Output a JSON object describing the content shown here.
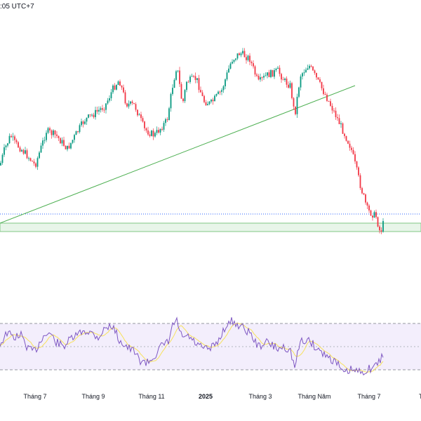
{
  "header": {
    "timestamp_label": ":05 UTC+7"
  },
  "x_axis": {
    "labels": [
      {
        "text": "Tháng 7",
        "bold": false
      },
      {
        "text": "Tháng 9",
        "bold": false
      },
      {
        "text": "Tháng 11",
        "bold": false
      },
      {
        "text": "2025",
        "bold": true
      },
      {
        "text": "Tháng 3",
        "bold": false
      },
      {
        "text": "Tháng Năm",
        "bold": false
      },
      {
        "text": "Tháng 7",
        "bold": false
      },
      {
        "text": "T",
        "bold": false
      }
    ]
  },
  "colors": {
    "up": "#089981",
    "down": "#f23645",
    "trendline": "#4caf50",
    "support_zone_fill": "#e8f5e9",
    "support_zone_border": "#81c784",
    "price_line": "#2962ff",
    "rsi_line": "#7e57c2",
    "rsi_ma": "#f7e15c",
    "rsi_band_fill": "#f3eefc",
    "rsi_band_border": "#9598a1"
  },
  "chart_data": {
    "type": "candlestick",
    "price_path": [
      [
        0,
        0.7
      ],
      [
        6,
        0.6
      ],
      [
        15,
        0.5
      ],
      [
        21,
        0.55
      ],
      [
        28,
        0.58
      ],
      [
        40,
        0.64
      ],
      [
        50,
        0.7
      ],
      [
        60,
        0.56
      ],
      [
        66,
        0.47
      ],
      [
        80,
        0.5
      ],
      [
        96,
        0.59
      ],
      [
        106,
        0.51
      ],
      [
        120,
        0.4
      ],
      [
        136,
        0.35
      ],
      [
        150,
        0.3
      ],
      [
        162,
        0.18
      ],
      [
        170,
        0.13
      ],
      [
        180,
        0.29
      ],
      [
        192,
        0.3
      ],
      [
        206,
        0.46
      ],
      [
        220,
        0.5
      ],
      [
        238,
        0.4
      ],
      [
        246,
        0.17
      ],
      [
        252,
        0.03
      ],
      [
        260,
        0.3
      ],
      [
        266,
        0.14
      ],
      [
        280,
        0.12
      ],
      [
        290,
        0.27
      ],
      [
        300,
        0.29
      ],
      [
        316,
        0.2
      ],
      [
        330,
        0.0
      ],
      [
        342,
        -0.05
      ],
      [
        356,
        -0.01
      ],
      [
        368,
        0.15
      ],
      [
        380,
        0.1
      ],
      [
        396,
        0.07
      ],
      [
        406,
        0.14
      ],
      [
        414,
        0.17
      ],
      [
        420,
        0.37
      ],
      [
        428,
        0.1
      ],
      [
        440,
        0.03
      ],
      [
        452,
        0.13
      ],
      [
        466,
        0.25
      ],
      [
        480,
        0.38
      ],
      [
        500,
        0.58
      ],
      [
        514,
        0.84
      ],
      [
        524,
        1.0
      ],
      [
        536,
        1.04
      ],
      [
        542,
        1.15
      ],
      [
        546,
        1.09
      ]
    ],
    "rsi_path": [
      [
        0,
        0.45
      ],
      [
        10,
        0.2
      ],
      [
        20,
        0.3
      ],
      [
        30,
        0.25
      ],
      [
        40,
        0.55
      ],
      [
        50,
        0.6
      ],
      [
        60,
        0.3
      ],
      [
        70,
        0.2
      ],
      [
        80,
        0.4
      ],
      [
        90,
        0.5
      ],
      [
        100,
        0.35
      ],
      [
        110,
        0.25
      ],
      [
        120,
        0.15
      ],
      [
        130,
        0.2
      ],
      [
        140,
        0.3
      ],
      [
        150,
        0.1
      ],
      [
        160,
        0.05
      ],
      [
        170,
        0.35
      ],
      [
        180,
        0.5
      ],
      [
        190,
        0.6
      ],
      [
        200,
        0.8
      ],
      [
        210,
        0.85
      ],
      [
        220,
        0.7
      ],
      [
        230,
        0.5
      ],
      [
        240,
        0.4
      ],
      [
        246,
        0.05
      ],
      [
        252,
        -0.05
      ],
      [
        260,
        0.35
      ],
      [
        266,
        0.25
      ],
      [
        280,
        0.45
      ],
      [
        290,
        0.55
      ],
      [
        300,
        0.55
      ],
      [
        310,
        0.4
      ],
      [
        320,
        0.1
      ],
      [
        330,
        -0.05
      ],
      [
        342,
        0.05
      ],
      [
        356,
        0.2
      ],
      [
        368,
        0.5
      ],
      [
        380,
        0.4
      ],
      [
        396,
        0.55
      ],
      [
        406,
        0.5
      ],
      [
        414,
        0.6
      ],
      [
        420,
        0.95
      ],
      [
        428,
        0.4
      ],
      [
        440,
        0.35
      ],
      [
        452,
        0.55
      ],
      [
        466,
        0.7
      ],
      [
        480,
        0.85
      ],
      [
        490,
        1.1
      ],
      [
        500,
        1.0
      ],
      [
        510,
        1.05
      ],
      [
        524,
        1.0
      ],
      [
        536,
        0.9
      ],
      [
        542,
        0.8
      ],
      [
        546,
        0.65
      ]
    ]
  }
}
